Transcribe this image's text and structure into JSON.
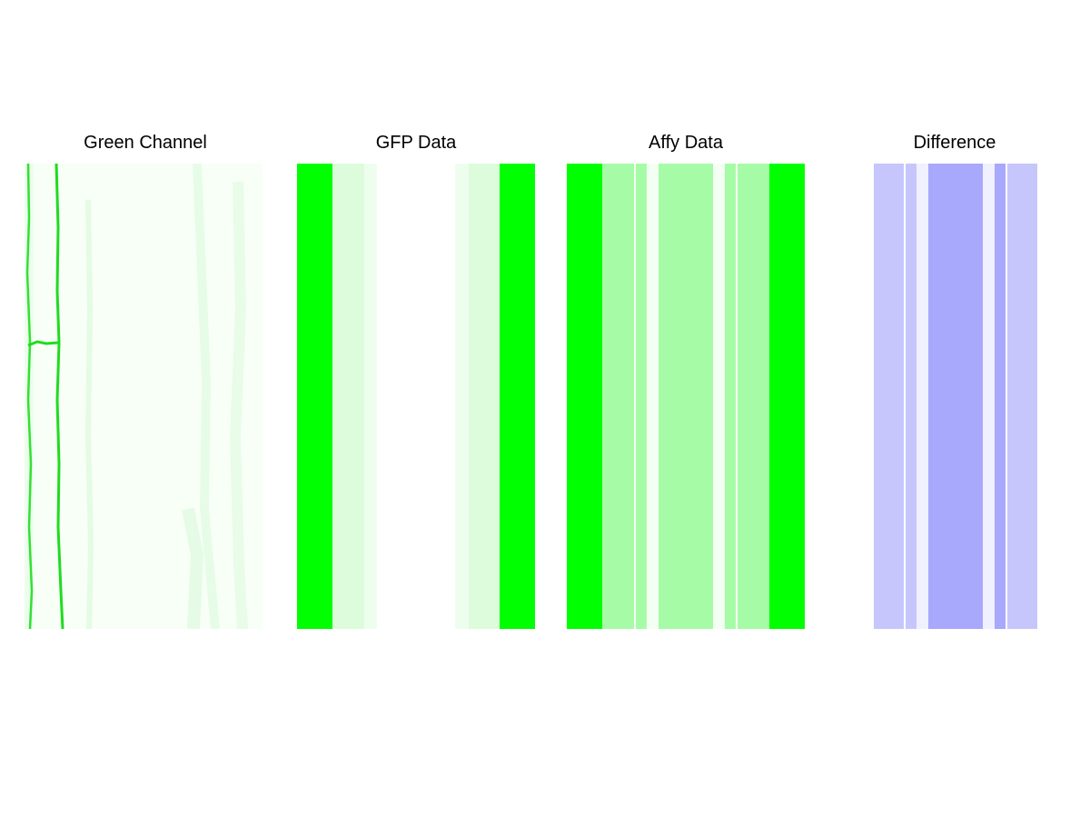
{
  "panels": {
    "green_channel": {
      "title": "Green Channel"
    },
    "gfp_data": {
      "title": "GFP Data"
    },
    "affy_data": {
      "title": "Affy Data"
    },
    "difference": {
      "title": "Difference"
    }
  },
  "colors": {
    "background": "#ffffff",
    "title_text": "#000000",
    "microscopy_base": "#f6fff6",
    "microscopy_wall": "#22e022"
  },
  "gfp_stripes": [
    {
      "color": "#00ff00"
    },
    {
      "color": "#dcfcdc"
    },
    {
      "color": "#eefeee"
    },
    {
      "color": "#ffffff"
    },
    {
      "color": "#eefeee"
    },
    {
      "color": "#dcfcdc"
    },
    {
      "color": "#00ff00"
    }
  ],
  "affy_stripes": [
    {
      "color": "#00ff00"
    },
    {
      "color": "#a6fca6"
    },
    {
      "color": "#f4fff4"
    },
    {
      "color": "#a6fca6"
    },
    {
      "color": "#f4fff4"
    },
    {
      "color": "#a6fca6"
    },
    {
      "color": "#f4fff4"
    },
    {
      "color": "#a6fca6"
    },
    {
      "color": "#f4fff4"
    },
    {
      "color": "#a6fca6"
    },
    {
      "color": "#00ff00"
    }
  ],
  "difference_stripes": [
    {
      "color": "#c6c6fc"
    },
    {
      "color": "#ffffff"
    },
    {
      "color": "#c6c6fc"
    },
    {
      "color": "#f0f0ff"
    },
    {
      "color": "#a8a8fc"
    },
    {
      "color": "#f0f0ff"
    },
    {
      "color": "#a8a8fc"
    },
    {
      "color": "#ffffff"
    },
    {
      "color": "#c6c6fc"
    }
  ]
}
